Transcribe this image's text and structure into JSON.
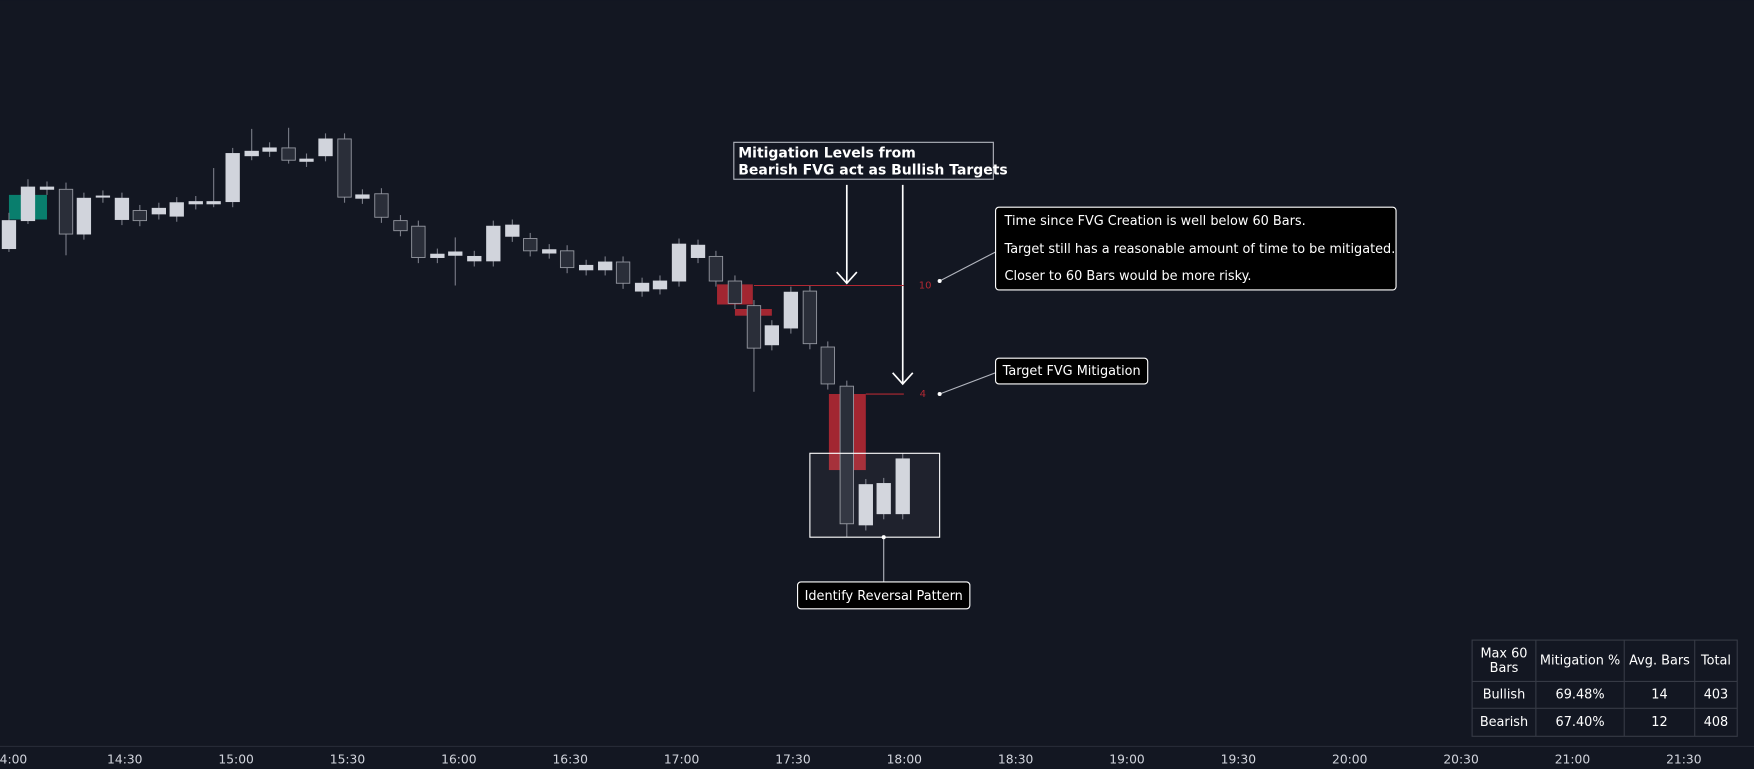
{
  "annotations": {
    "title": [
      "Mitigation Levels from",
      "Bearish FVG act as Bullish Targets"
    ],
    "info": [
      "Time since FVG Creation is well below 60 Bars.",
      "Target still has a reasonable amount of time to be mitigated.",
      "Closer to 60 Bars would be more risky."
    ],
    "target": "Target FVG Mitigation",
    "reversal": "Identify Reversal Pattern"
  },
  "levels": [
    10,
    4
  ],
  "time_axis": [
    "4:00",
    "14:30",
    "15:00",
    "15:30",
    "16:00",
    "16:30",
    "17:00",
    "17:30",
    "18:00",
    "18:30",
    "19:00",
    "19:30",
    "20:00",
    "20:30",
    "21:00",
    "21:30"
  ],
  "table": {
    "header": [
      "Max 60 Bars",
      "Mitigation %",
      "Avg. Bars",
      "Total"
    ],
    "rows": [
      [
        "Bullish",
        "69.48%",
        14,
        403
      ],
      [
        "Bearish",
        "67.40%",
        12,
        408
      ]
    ]
  }
}
